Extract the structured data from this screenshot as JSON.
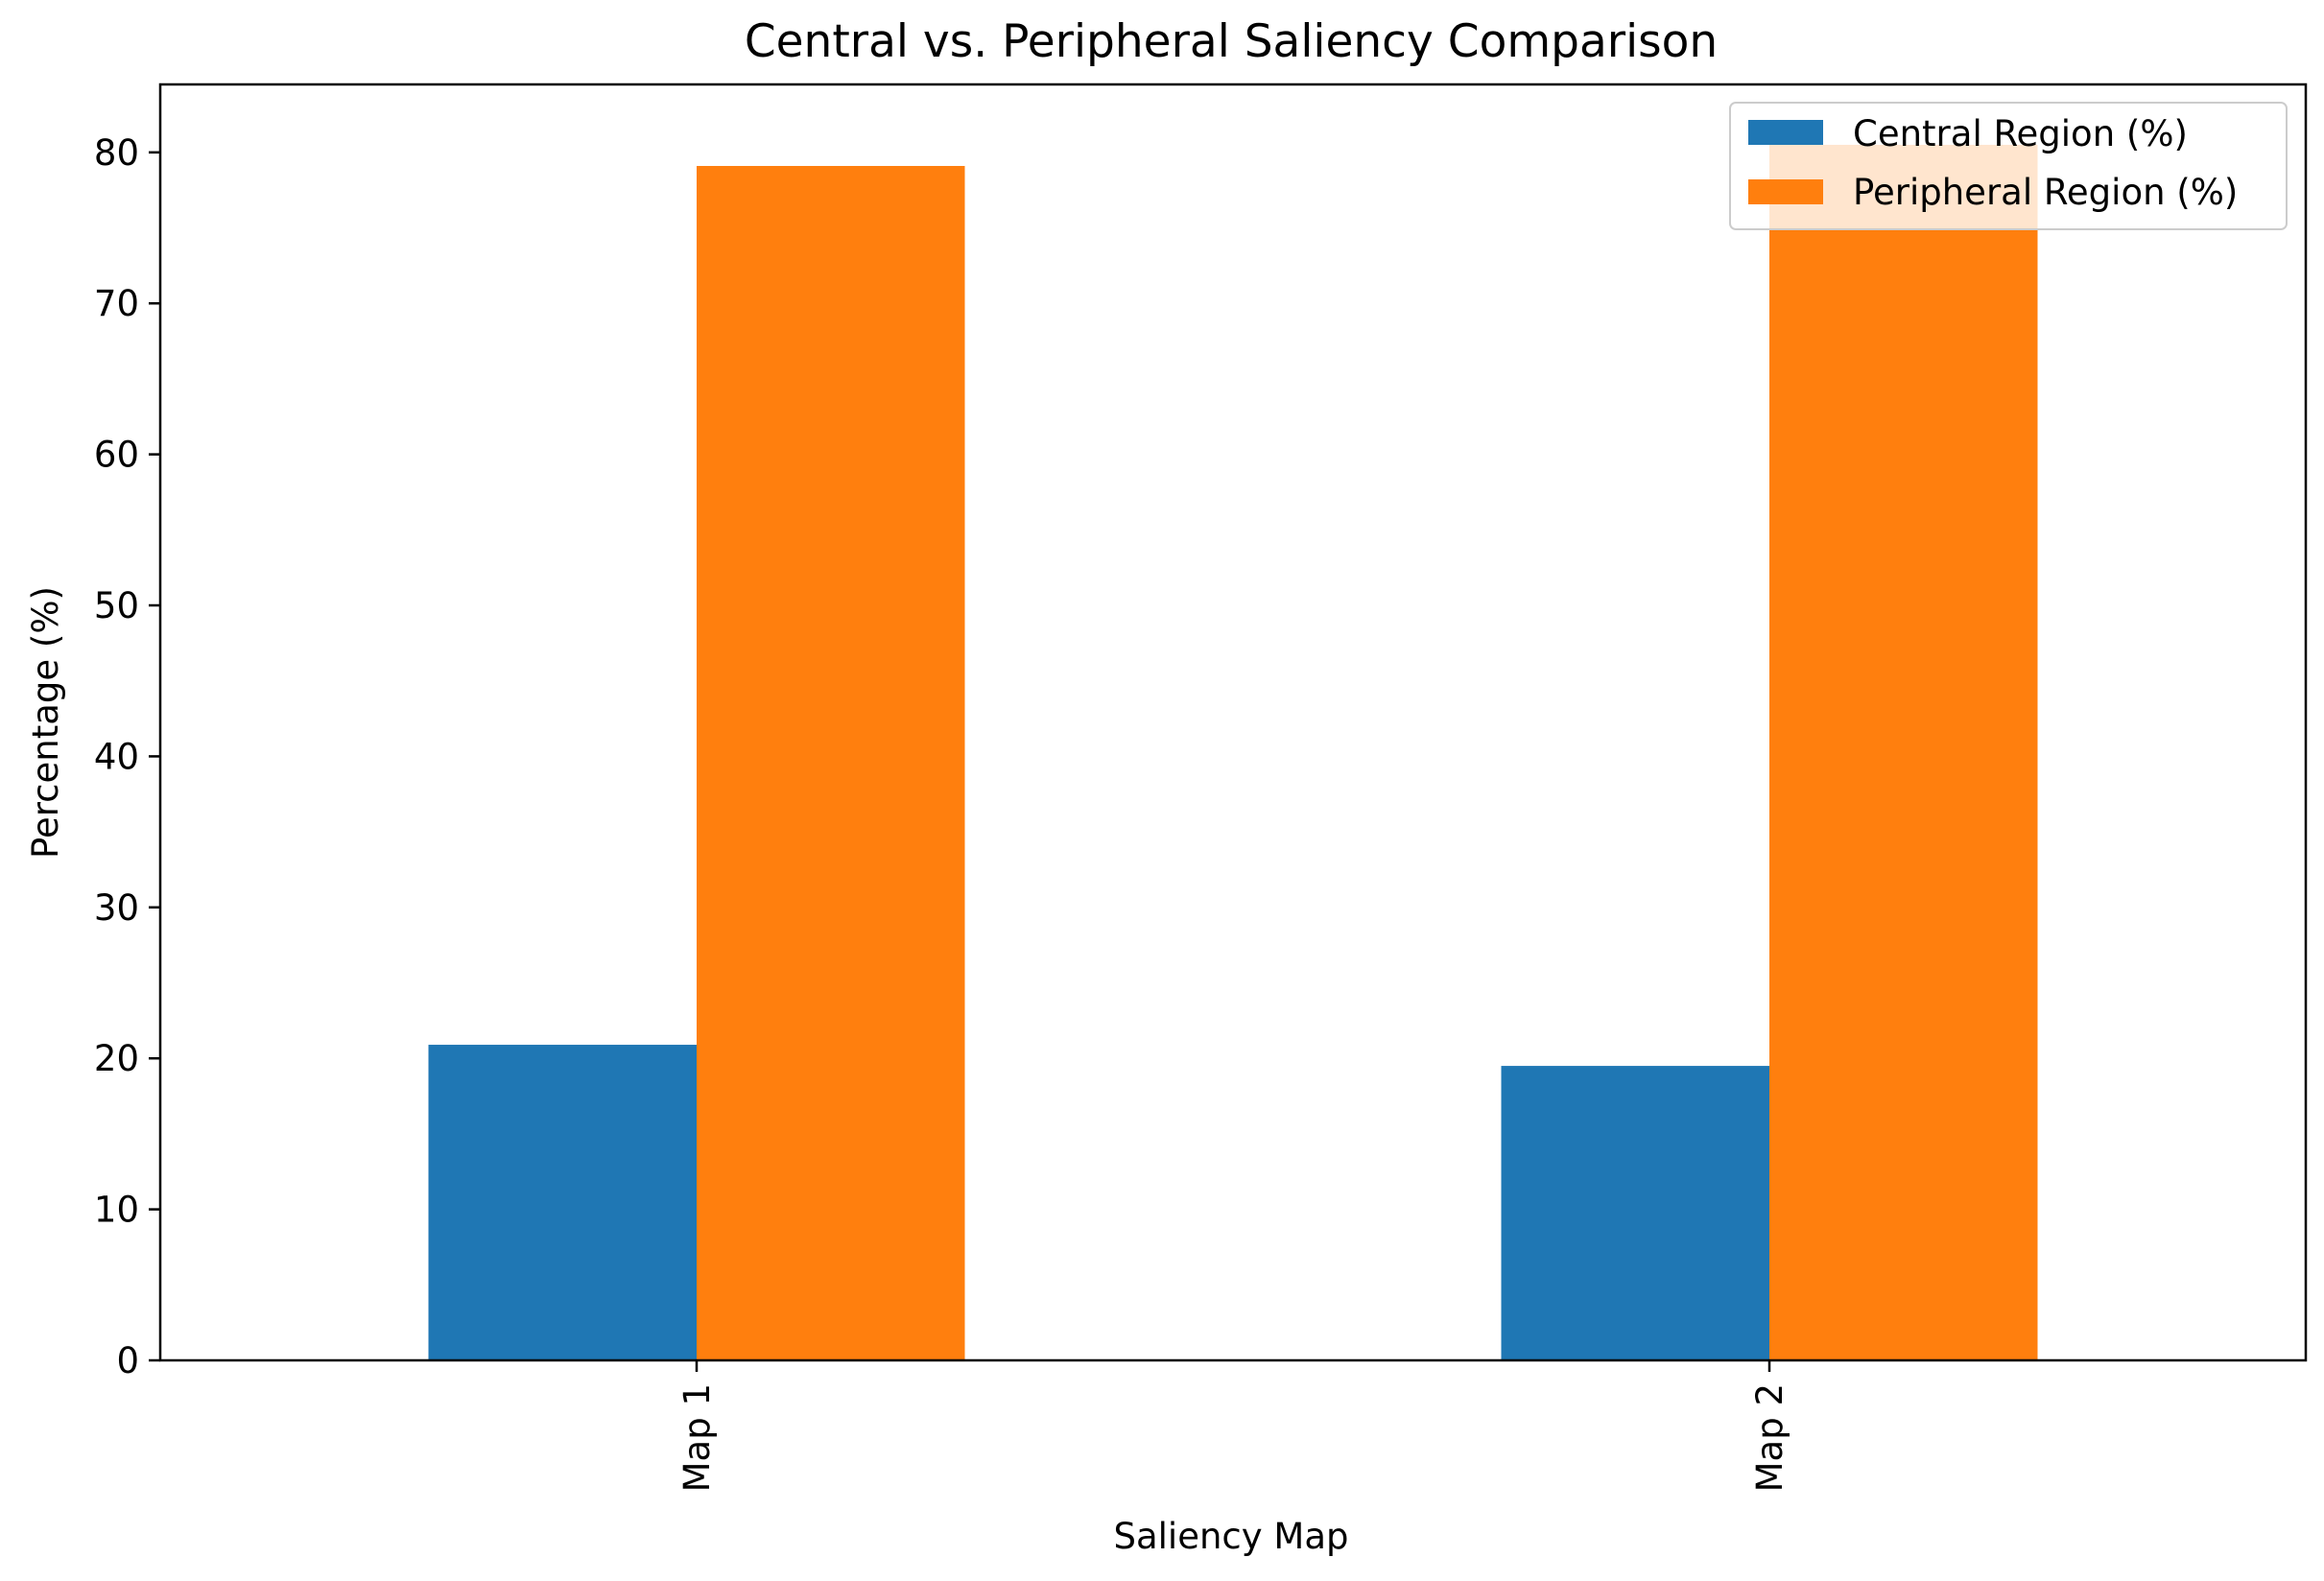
{
  "chart_data": {
    "type": "bar",
    "title": "Central vs. Peripheral Saliency Comparison",
    "xlabel": "Saliency Map",
    "ylabel": "Percentage (%)",
    "categories": [
      "Map 1",
      "Map 2"
    ],
    "series": [
      {
        "name": "Central Region (%)",
        "color": "#1f77b4",
        "values": [
          20.9,
          19.5
        ]
      },
      {
        "name": "Peripheral Region (%)",
        "color": "#ff7f0e",
        "values": [
          79.1,
          80.5
        ]
      }
    ],
    "ylim": [
      0,
      84.5
    ],
    "yticks": [
      0,
      10,
      20,
      30,
      40,
      50,
      60,
      70,
      80
    ],
    "grid": false,
    "legend_position": "top-right",
    "xtick_rotation": "vertical"
  }
}
